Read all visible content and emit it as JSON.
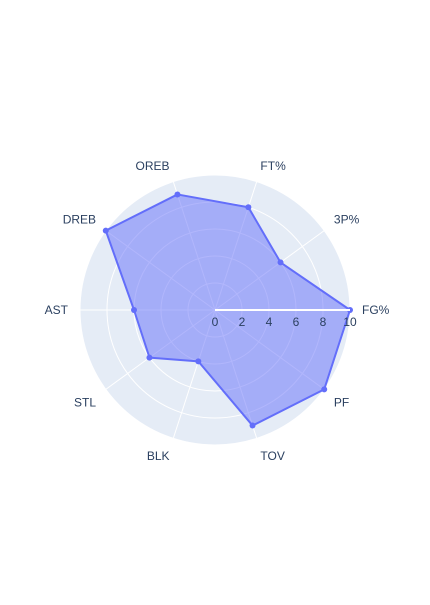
{
  "chart_data": {
    "type": "radar",
    "categories": [
      "FG%",
      "3P%",
      "FT%",
      "OREB",
      "DREB",
      "AST",
      "STL",
      "BLK",
      "TOV",
      "PF"
    ],
    "series": [
      {
        "values": [
          10,
          6,
          8,
          9,
          10,
          6,
          6,
          4,
          9,
          10
        ],
        "color": "#636efa",
        "fill": "toself"
      }
    ],
    "radial_range": [
      0,
      10
    ],
    "radial_ticks": [
      "0",
      "2",
      "4",
      "6",
      "8",
      "10"
    ],
    "grid": true,
    "background_color": "#e5ecf6",
    "grid_color": "#ffffff"
  }
}
